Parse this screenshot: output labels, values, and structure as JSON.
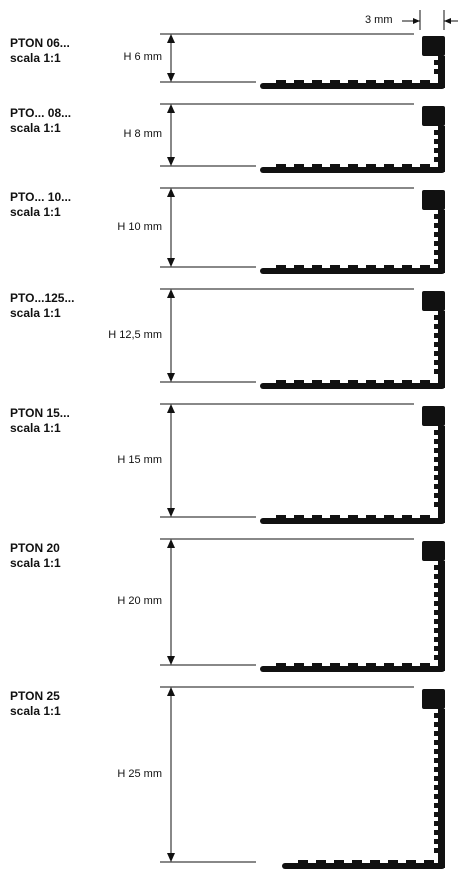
{
  "wall_thickness_label": "3 mm",
  "profiles": [
    {
      "code": "PTON 06...",
      "scale": "scala 1:1",
      "height_label": "H 6 mm",
      "height_mm": 6
    },
    {
      "code": "PTO... 08...",
      "scale": "scala 1:1",
      "height_label": "H 8 mm",
      "height_mm": 8
    },
    {
      "code": "PTO... 10...",
      "scale": "scala 1:1",
      "height_label": "H 10 mm",
      "height_mm": 10
    },
    {
      "code": "PTO...125...",
      "scale": "scala 1:1",
      "height_label": "H 12,5 mm",
      "height_mm": 12.5
    },
    {
      "code": "PTON 15...",
      "scale": "scala 1:1",
      "height_label": "H 15 mm",
      "height_mm": 15
    },
    {
      "code": "PTON 20",
      "scale": "scala 1:1",
      "height_label": "H 20 mm",
      "height_mm": 20
    },
    {
      "code": "PTON 25",
      "scale": "scala 1:1",
      "height_label": "H 25 mm",
      "height_mm": 25
    }
  ],
  "colors": {
    "profile": "#111111",
    "line": "#111111"
  }
}
